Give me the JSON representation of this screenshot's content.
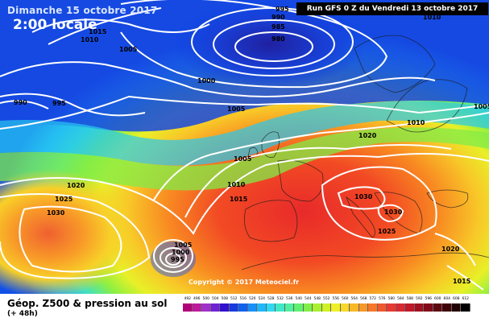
{
  "header": {
    "valid_time": "Dimanche 15 octobre 2017",
    "local_time": "2:00 locale",
    "run_info": "Run GFS 0 Z du Vendredi 13 octobre 2017"
  },
  "footer": {
    "copyright": "Copyright © 2017 Meteociel.fr",
    "product_title": "Géop. Z500 & pression au sol",
    "forecast_hour": "(+ 48h)"
  },
  "color_scale": {
    "labels": [
      "492",
      "496",
      "500",
      "504",
      "508",
      "512",
      "516",
      "520",
      "524",
      "528",
      "532",
      "536",
      "540",
      "544",
      "548",
      "552",
      "556",
      "560",
      "564",
      "568",
      "572",
      "576",
      "580",
      "584",
      "588",
      "592",
      "596",
      "600",
      "604",
      "608",
      "612"
    ],
    "colors": [
      "#b0007a",
      "#c0189a",
      "#a030c8",
      "#7020d8",
      "#3010d0",
      "#1838e0",
      "#1060f0",
      "#1890f8",
      "#20b8f8",
      "#30d8f0",
      "#40e8c8",
      "#50f0a0",
      "#60f070",
      "#80f048",
      "#a8f030",
      "#d0f028",
      "#f0f028",
      "#f8d828",
      "#f8b828",
      "#f89828",
      "#f87828",
      "#f05830",
      "#e83830",
      "#d82830",
      "#c01828",
      "#a01020",
      "#800818",
      "#600810",
      "#400408",
      "#200000",
      "#000000"
    ]
  },
  "isobars": [
    {
      "label": "990",
      "kind": "pressure"
    },
    {
      "label": "985",
      "kind": "pressure"
    },
    {
      "label": "980",
      "kind": "pressure"
    },
    {
      "label": "995",
      "kind": "pressure"
    },
    {
      "label": "1015",
      "kind": "pressure"
    },
    {
      "label": "1010",
      "kind": "pressure"
    },
    {
      "label": "1005",
      "kind": "pressure"
    },
    {
      "label": "1010",
      "kind": "pressure"
    },
    {
      "label": "1000",
      "kind": "pressure"
    },
    {
      "label": "990",
      "kind": "pressure"
    },
    {
      "label": "995",
      "kind": "pressure"
    },
    {
      "label": "1005",
      "kind": "pressure"
    },
    {
      "label": "1010",
      "kind": "pressure"
    },
    {
      "label": "1005",
      "kind": "pressure"
    },
    {
      "label": "1020",
      "kind": "pressure"
    },
    {
      "label": "1005",
      "kind": "pressure"
    },
    {
      "label": "1010",
      "kind": "pressure"
    },
    {
      "label": "1015",
      "kind": "pressure"
    },
    {
      "label": "1020",
      "kind": "pressure"
    },
    {
      "label": "1025",
      "kind": "pressure"
    },
    {
      "label": "1030",
      "kind": "pressure"
    },
    {
      "label": "1030",
      "kind": "pressure"
    },
    {
      "label": "1030",
      "kind": "pressure"
    },
    {
      "label": "1025",
      "kind": "pressure"
    },
    {
      "label": "1005",
      "kind": "pressure"
    },
    {
      "label": "1000",
      "kind": "pressure"
    },
    {
      "label": "995",
      "kind": "pressure"
    },
    {
      "label": "1020",
      "kind": "pressure"
    },
    {
      "label": "1015",
      "kind": "pressure"
    }
  ]
}
